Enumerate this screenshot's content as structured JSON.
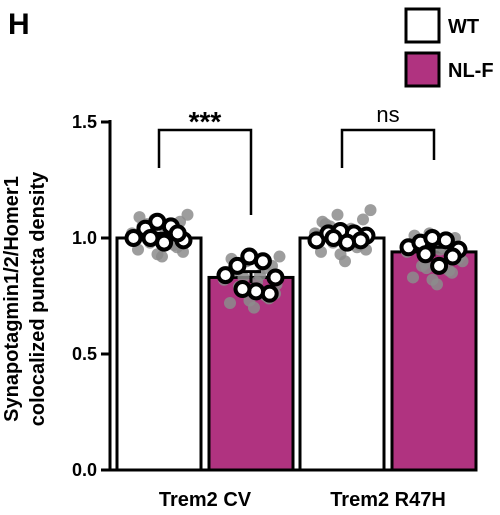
{
  "panel_letter": "H",
  "colors": {
    "wt": "#ffffff",
    "nlf": "#b03380",
    "gray_point": "#8c8c8c",
    "axis": "#000000"
  },
  "chart_data": {
    "type": "bar",
    "categories": [
      "Trem2 CV",
      "Trem2 R47H"
    ],
    "ylabel_lines": [
      "Synapotagmin1/2/Homer1",
      "colocalized puncta density"
    ],
    "ylim": [
      0,
      1.5
    ],
    "yticks": [
      {
        "value": 0.0,
        "label": "0.0"
      },
      {
        "value": 0.5,
        "label": "0.5"
      },
      {
        "value": 1.0,
        "label": "1.0"
      },
      {
        "value": 1.5,
        "label": "1.5"
      }
    ],
    "legend": {
      "placement": "top-right",
      "entries": [
        {
          "name": "WT",
          "color": "#ffffff"
        },
        {
          "name": "NL-F",
          "color": "#b03380"
        }
      ]
    },
    "series": [
      {
        "name": "WT",
        "color": "#ffffff",
        "values": [
          1.0,
          1.0
        ],
        "sem": [
          0.02,
          0.015
        ],
        "animal_points": [
          [
            1.0,
            1.04,
            1.07,
            1.05,
            0.99,
            1.02,
            0.98,
            1.0
          ],
          [
            0.99,
            1.02,
            1.03,
            1.02,
            1.01,
            0.99,
            0.98,
            1.0
          ]
        ],
        "replicate_points": [
          [
            0.92,
            0.95,
            0.97,
            0.98,
            1.0,
            1.02,
            1.03,
            1.05,
            1.07,
            1.08,
            1.1,
            1.06,
            1.04,
            1.01,
            0.96,
            0.93,
            0.99,
            1.09,
            0.94,
            1.03
          ],
          [
            0.9,
            0.94,
            0.96,
            0.98,
            1.0,
            1.02,
            1.04,
            1.06,
            1.08,
            1.1,
            1.12,
            1.05,
            1.03,
            1.01,
            0.97,
            0.93,
            0.99,
            1.07,
            0.95,
            1.02
          ]
        ]
      },
      {
        "name": "NL-F",
        "color": "#b03380",
        "values": [
          0.83,
          0.94
        ],
        "sem": [
          0.025,
          0.02
        ],
        "animal_points": [
          [
            0.84,
            0.88,
            0.92,
            0.9,
            0.83,
            0.76,
            0.77,
            0.78
          ],
          [
            0.96,
            0.98,
            1.0,
            0.99,
            0.95,
            0.92,
            0.88,
            0.93
          ]
        ],
        "replicate_points": [
          [
            0.7,
            0.72,
            0.75,
            0.78,
            0.8,
            0.82,
            0.84,
            0.86,
            0.88,
            0.9,
            0.92,
            0.79,
            0.81,
            0.85,
            0.74,
            0.73,
            0.87,
            0.91,
            0.76,
            0.83
          ],
          [
            0.8,
            0.83,
            0.86,
            0.89,
            0.92,
            0.94,
            0.96,
            0.98,
            1.0,
            1.02,
            0.9,
            0.88,
            0.95,
            0.97,
            0.85,
            0.82,
            0.99,
            1.01,
            0.91,
            0.87
          ]
        ]
      }
    ],
    "significance": [
      {
        "category": "Trem2 CV",
        "label": "***"
      },
      {
        "category": "Trem2 R47H",
        "label": "ns"
      }
    ]
  }
}
